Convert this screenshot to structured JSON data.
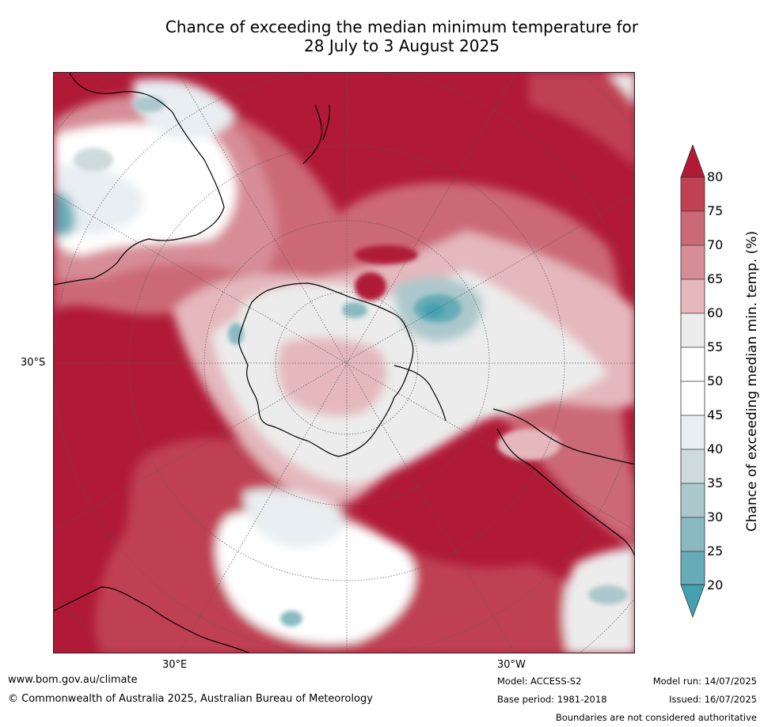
{
  "title": {
    "line1": "Chance of exceeding the median minimum temperature for",
    "line2": "28 July to 3 August 2025"
  },
  "map": {
    "projection": "south-polar",
    "lat_label": "30°S",
    "lon_labels": [
      "30°E",
      "30°W"
    ],
    "colors": {
      "c80": "#b01a37",
      "c75": "#c04152",
      "c70": "#cc6977",
      "c65": "#d78d97",
      "c60": "#e4b8bd",
      "c55": "#ececec",
      "c50": "#ffffff",
      "c45": "#e8eef1",
      "c40": "#cfdadc",
      "c35": "#abc8cc",
      "c30": "#8ab9c1",
      "c25": "#66abb7",
      "c20": "#44a1b1",
      "land": "#000000",
      "grid": "#555555"
    }
  },
  "colorbar": {
    "label": "Chance of exceeding median min. temp. (%)",
    "ticks": [
      "80",
      "75",
      "70",
      "65",
      "60",
      "55",
      "50",
      "45",
      "40",
      "35",
      "30",
      "25",
      "20"
    ]
  },
  "footer": {
    "website": "www.bom.gov.au/climate",
    "copyright": "© Commonwealth of Australia 2025, Australian Bureau of Meteorology",
    "model": "Model: ACCESS-S2",
    "model_run": "Model run: 14/07/2025",
    "base_period": "Base period: 1981-2018",
    "issued": "Issued: 16/07/2025",
    "disclaimer": "Boundaries are not considered authoritative"
  }
}
